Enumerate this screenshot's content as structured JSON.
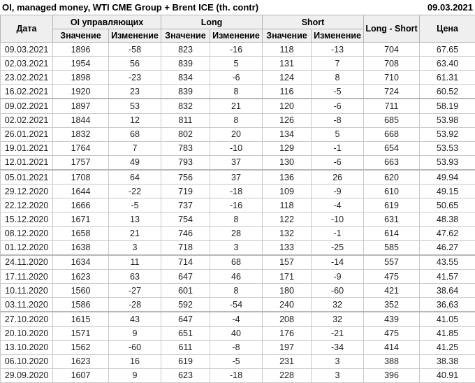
{
  "header": {
    "title": "OI, managed money, WTI CME Group + Brent ICE (th. contr)",
    "date": "09.03.2021"
  },
  "colors": {
    "positive_change": "#009900",
    "negative_change": "#cc0000",
    "header_bg": "#efefef"
  },
  "chart_data": {
    "type": "table",
    "title": "OI, managed money, WTI CME Group + Brent ICE (th. contr)",
    "report_date": "09.03.2021",
    "column_groups": {
      "oi": "OI управляющих",
      "long": "Long",
      "short": "Short"
    },
    "single_columns": {
      "date": "Дата",
      "long_short": "Long - Short",
      "price": "Цена"
    },
    "sub_columns": {
      "value": "Значение",
      "change": "Изменение"
    },
    "rows": [
      {
        "date": "09.03.2021",
        "oi": 1896,
        "oi_chg": -58,
        "long": 823,
        "long_chg": -16,
        "short": 118,
        "short_chg": -13,
        "long_short": 704,
        "price": "67.65"
      },
      {
        "date": "02.03.2021",
        "oi": 1954,
        "oi_chg": 56,
        "long": 839,
        "long_chg": 5,
        "short": 131,
        "short_chg": 7,
        "long_short": 708,
        "price": "63.40"
      },
      {
        "date": "23.02.2021",
        "oi": 1898,
        "oi_chg": -23,
        "long": 834,
        "long_chg": -6,
        "short": 124,
        "short_chg": 8,
        "long_short": 710,
        "price": "61.31"
      },
      {
        "date": "16.02.2021",
        "oi": 1920,
        "oi_chg": 23,
        "long": 839,
        "long_chg": 8,
        "short": 116,
        "short_chg": -5,
        "long_short": 724,
        "price": "60.52"
      },
      {
        "date": "09.02.2021",
        "oi": 1897,
        "oi_chg": 53,
        "long": 832,
        "long_chg": 21,
        "short": 120,
        "short_chg": -6,
        "long_short": 711,
        "price": "58.19"
      },
      {
        "date": "02.02.2021",
        "oi": 1844,
        "oi_chg": 12,
        "long": 811,
        "long_chg": 8,
        "short": 126,
        "short_chg": -8,
        "long_short": 685,
        "price": "53.98"
      },
      {
        "date": "26.01.2021",
        "oi": 1832,
        "oi_chg": 68,
        "long": 802,
        "long_chg": 20,
        "short": 134,
        "short_chg": 5,
        "long_short": 668,
        "price": "53.92"
      },
      {
        "date": "19.01.2021",
        "oi": 1764,
        "oi_chg": 7,
        "long": 783,
        "long_chg": -10,
        "short": 129,
        "short_chg": -1,
        "long_short": 654,
        "price": "53.53"
      },
      {
        "date": "12.01.2021",
        "oi": 1757,
        "oi_chg": 49,
        "long": 793,
        "long_chg": 37,
        "short": 130,
        "short_chg": -6,
        "long_short": 663,
        "price": "53.93"
      },
      {
        "date": "05.01.2021",
        "oi": 1708,
        "oi_chg": 64,
        "long": 756,
        "long_chg": 37,
        "short": 136,
        "short_chg": 26,
        "long_short": 620,
        "price": "49.94"
      },
      {
        "date": "29.12.2020",
        "oi": 1644,
        "oi_chg": -22,
        "long": 719,
        "long_chg": -18,
        "short": 109,
        "short_chg": -9,
        "long_short": 610,
        "price": "49.15"
      },
      {
        "date": "22.12.2020",
        "oi": 1666,
        "oi_chg": -5,
        "long": 737,
        "long_chg": -16,
        "short": 118,
        "short_chg": -4,
        "long_short": 619,
        "price": "50.65"
      },
      {
        "date": "15.12.2020",
        "oi": 1671,
        "oi_chg": 13,
        "long": 754,
        "long_chg": 8,
        "short": 122,
        "short_chg": -10,
        "long_short": 631,
        "price": "48.38"
      },
      {
        "date": "08.12.2020",
        "oi": 1658,
        "oi_chg": 21,
        "long": 746,
        "long_chg": 28,
        "short": 132,
        "short_chg": -1,
        "long_short": 614,
        "price": "47.62"
      },
      {
        "date": "01.12.2020",
        "oi": 1638,
        "oi_chg": 3,
        "long": 718,
        "long_chg": 3,
        "short": 133,
        "short_chg": -25,
        "long_short": 585,
        "price": "46.27"
      },
      {
        "date": "24.11.2020",
        "oi": 1634,
        "oi_chg": 11,
        "long": 714,
        "long_chg": 68,
        "short": 157,
        "short_chg": -14,
        "long_short": 557,
        "price": "43.55"
      },
      {
        "date": "17.11.2020",
        "oi": 1623,
        "oi_chg": 63,
        "long": 647,
        "long_chg": 46,
        "short": 171,
        "short_chg": -9,
        "long_short": 475,
        "price": "41.57"
      },
      {
        "date": "10.11.2020",
        "oi": 1560,
        "oi_chg": -27,
        "long": 601,
        "long_chg": 8,
        "short": 180,
        "short_chg": -60,
        "long_short": 421,
        "price": "38.64"
      },
      {
        "date": "03.11.2020",
        "oi": 1586,
        "oi_chg": -28,
        "long": 592,
        "long_chg": -54,
        "short": 240,
        "short_chg": 32,
        "long_short": 352,
        "price": "36.63"
      },
      {
        "date": "27.10.2020",
        "oi": 1615,
        "oi_chg": 43,
        "long": 647,
        "long_chg": -4,
        "short": 208,
        "short_chg": 32,
        "long_short": 439,
        "price": "41.05"
      },
      {
        "date": "20.10.2020",
        "oi": 1571,
        "oi_chg": 9,
        "long": 651,
        "long_chg": 40,
        "short": 176,
        "short_chg": -21,
        "long_short": 475,
        "price": "41.85"
      },
      {
        "date": "13.10.2020",
        "oi": 1562,
        "oi_chg": -60,
        "long": 611,
        "long_chg": -8,
        "short": 197,
        "short_chg": -34,
        "long_short": 414,
        "price": "41.25"
      },
      {
        "date": "06.10.2020",
        "oi": 1623,
        "oi_chg": 16,
        "long": 619,
        "long_chg": -5,
        "short": 231,
        "short_chg": 3,
        "long_short": 388,
        "price": "38.38"
      },
      {
        "date": "29.09.2020",
        "oi": 1607,
        "oi_chg": 9,
        "long": 623,
        "long_chg": -18,
        "short": 228,
        "short_chg": 3,
        "long_short": 396,
        "price": "40.91"
      }
    ]
  }
}
